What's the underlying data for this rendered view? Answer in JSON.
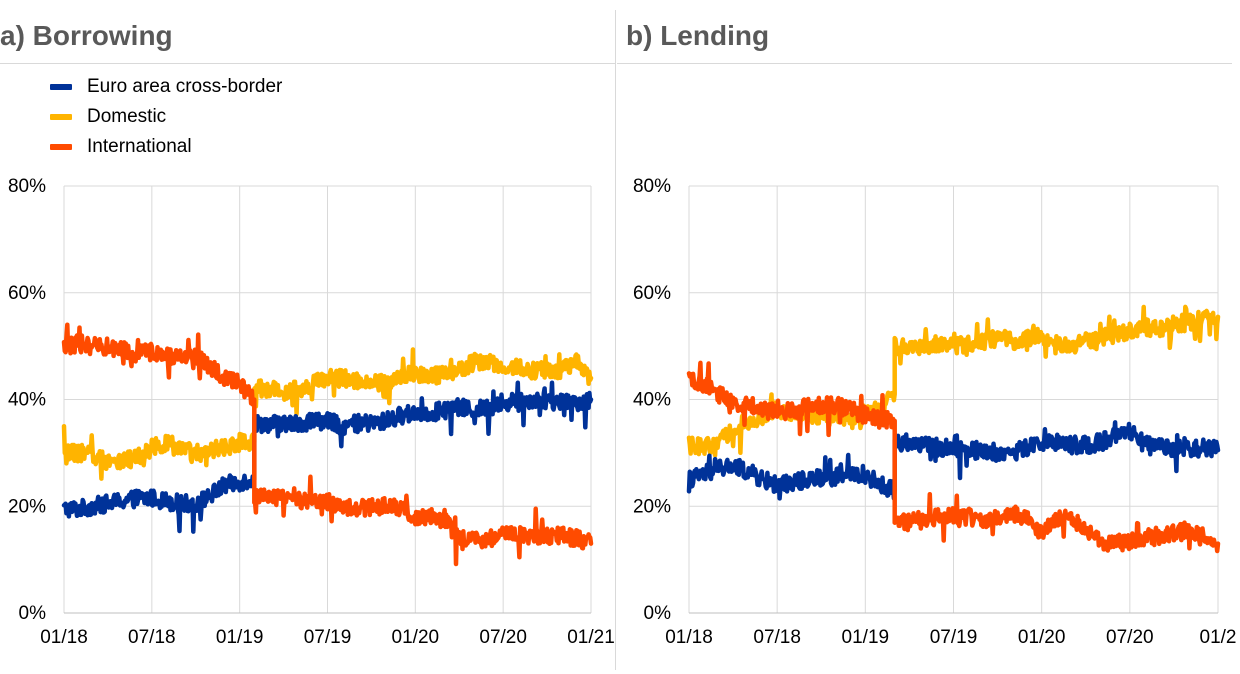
{
  "panels": {
    "a": {
      "title": "a) Borrowing"
    },
    "b": {
      "title": "b) Lending"
    }
  },
  "legend": [
    {
      "name": "Euro area cross-border",
      "color": "#003299"
    },
    {
      "name": "Domestic",
      "color": "#FFB400"
    },
    {
      "name": "International",
      "color": "#FF4B00"
    }
  ],
  "chart_data": [
    {
      "type": "line",
      "title": "a) Borrowing",
      "x_tick_labels": [
        "01/18",
        "07/18",
        "01/19",
        "07/19",
        "01/20",
        "07/20",
        "01/21"
      ],
      "y_tick_labels": [
        "0%",
        "20%",
        "40%",
        "60%",
        "80%"
      ],
      "ylim": [
        0,
        80
      ],
      "grid": true,
      "legend_position": "top-left",
      "x": [
        "01/18",
        "02/18",
        "03/18",
        "04/18",
        "05/18",
        "06/18",
        "07/18",
        "08/18",
        "09/18",
        "10/18",
        "11/18",
        "12/18",
        "01/19",
        "02/19",
        "02/19",
        "03/19",
        "04/19",
        "05/19",
        "06/19",
        "07/19",
        "08/19",
        "09/19",
        "10/19",
        "11/19",
        "12/19",
        "01/20",
        "02/20",
        "03/20",
        "04/20",
        "05/20",
        "06/20",
        "07/20",
        "08/20",
        "09/20",
        "10/20",
        "11/20",
        "12/20",
        "01/21"
      ],
      "series": [
        {
          "name": "Euro area cross-border",
          "color": "#003299",
          "values": [
            19.5,
            19.5,
            20,
            20.5,
            21,
            21.5,
            21.5,
            21,
            20.5,
            20.5,
            22,
            24,
            24.5,
            25,
            35.5,
            35.5,
            35.5,
            35.5,
            36,
            36,
            35,
            35.5,
            35.5,
            36,
            37,
            37.5,
            37.5,
            38,
            38.5,
            38,
            38.5,
            39,
            40,
            40,
            39.5,
            39.5,
            39.5,
            40
          ]
        },
        {
          "name": "Domestic",
          "color": "#FFB400",
          "values": [
            30,
            30,
            29.5,
            28.5,
            28.5,
            29,
            31,
            32,
            30.5,
            30,
            30.5,
            31,
            32,
            32,
            42,
            42,
            41.5,
            42,
            43,
            44,
            44,
            43.5,
            43.5,
            43,
            44,
            45,
            44.5,
            44.5,
            45.5,
            47,
            47,
            46,
            46,
            45.5,
            45.5,
            45.5,
            47,
            44
          ]
        },
        {
          "name": "International",
          "color": "#FF4B00",
          "values": [
            50,
            50.5,
            50,
            49.5,
            49.5,
            48.5,
            49,
            48,
            48,
            48,
            46,
            44,
            43,
            40,
            22,
            21.5,
            21.5,
            21,
            21,
            21,
            20,
            19.5,
            20,
            20,
            19.5,
            18,
            18,
            17.5,
            14,
            14,
            14,
            14.5,
            14.5,
            14.5,
            14.5,
            14.5,
            14,
            13
          ]
        }
      ]
    },
    {
      "type": "line",
      "title": "b) Lending",
      "x_tick_labels": [
        "01/18",
        "07/18",
        "01/19",
        "07/19",
        "01/20",
        "07/20",
        "01/2"
      ],
      "y_tick_labels": [
        "0%",
        "20%",
        "40%",
        "60%",
        "80%"
      ],
      "ylim": [
        0,
        80
      ],
      "grid": true,
      "x": [
        "01/18",
        "02/18",
        "03/18",
        "04/18",
        "05/18",
        "06/18",
        "07/18",
        "08/18",
        "09/18",
        "10/18",
        "11/18",
        "12/18",
        "01/19",
        "02/19",
        "03/19",
        "03/19",
        "04/19",
        "05/19",
        "06/19",
        "07/19",
        "08/19",
        "09/19",
        "10/19",
        "11/19",
        "12/19",
        "01/20",
        "02/20",
        "03/20",
        "04/20",
        "05/20",
        "06/20",
        "07/20",
        "08/20",
        "09/20",
        "10/20",
        "11/20",
        "12/20",
        "01/21"
      ],
      "series": [
        {
          "name": "Euro area cross-border",
          "color": "#003299",
          "values": [
            25,
            26,
            27,
            27.5,
            26.5,
            25,
            24,
            24.5,
            25,
            25.5,
            25.5,
            26,
            26,
            24,
            23,
            32,
            32,
            31.5,
            31,
            31,
            30.5,
            30.5,
            30,
            30,
            31,
            32,
            32,
            31.5,
            31.5,
            32,
            33,
            34,
            31.5,
            31,
            31,
            30.5,
            31,
            30.5
          ]
        },
        {
          "name": "Domestic",
          "color": "#FFB400",
          "values": [
            32,
            31,
            32,
            34,
            36,
            37,
            38,
            37.5,
            37,
            37,
            36.5,
            37,
            37.5,
            38,
            41,
            50,
            50,
            50,
            50.5,
            50,
            50.5,
            51,
            51.5,
            51,
            51.5,
            52,
            50,
            50,
            51,
            51.5,
            52,
            53,
            53.5,
            53,
            54,
            54.5,
            55,
            55.5
          ]
        },
        {
          "name": "International",
          "color": "#FF4B00",
          "values": [
            44,
            43,
            41,
            39.5,
            39,
            38,
            37.5,
            38,
            38.5,
            39,
            39,
            38,
            37,
            36.5,
            36,
            18,
            17,
            17.5,
            18,
            18.5,
            18,
            17.5,
            18,
            18.5,
            18,
            14.5,
            18,
            17.5,
            16,
            13,
            13,
            13.5,
            14,
            14.5,
            15,
            15.5,
            15,
            13
          ]
        }
      ]
    }
  ]
}
